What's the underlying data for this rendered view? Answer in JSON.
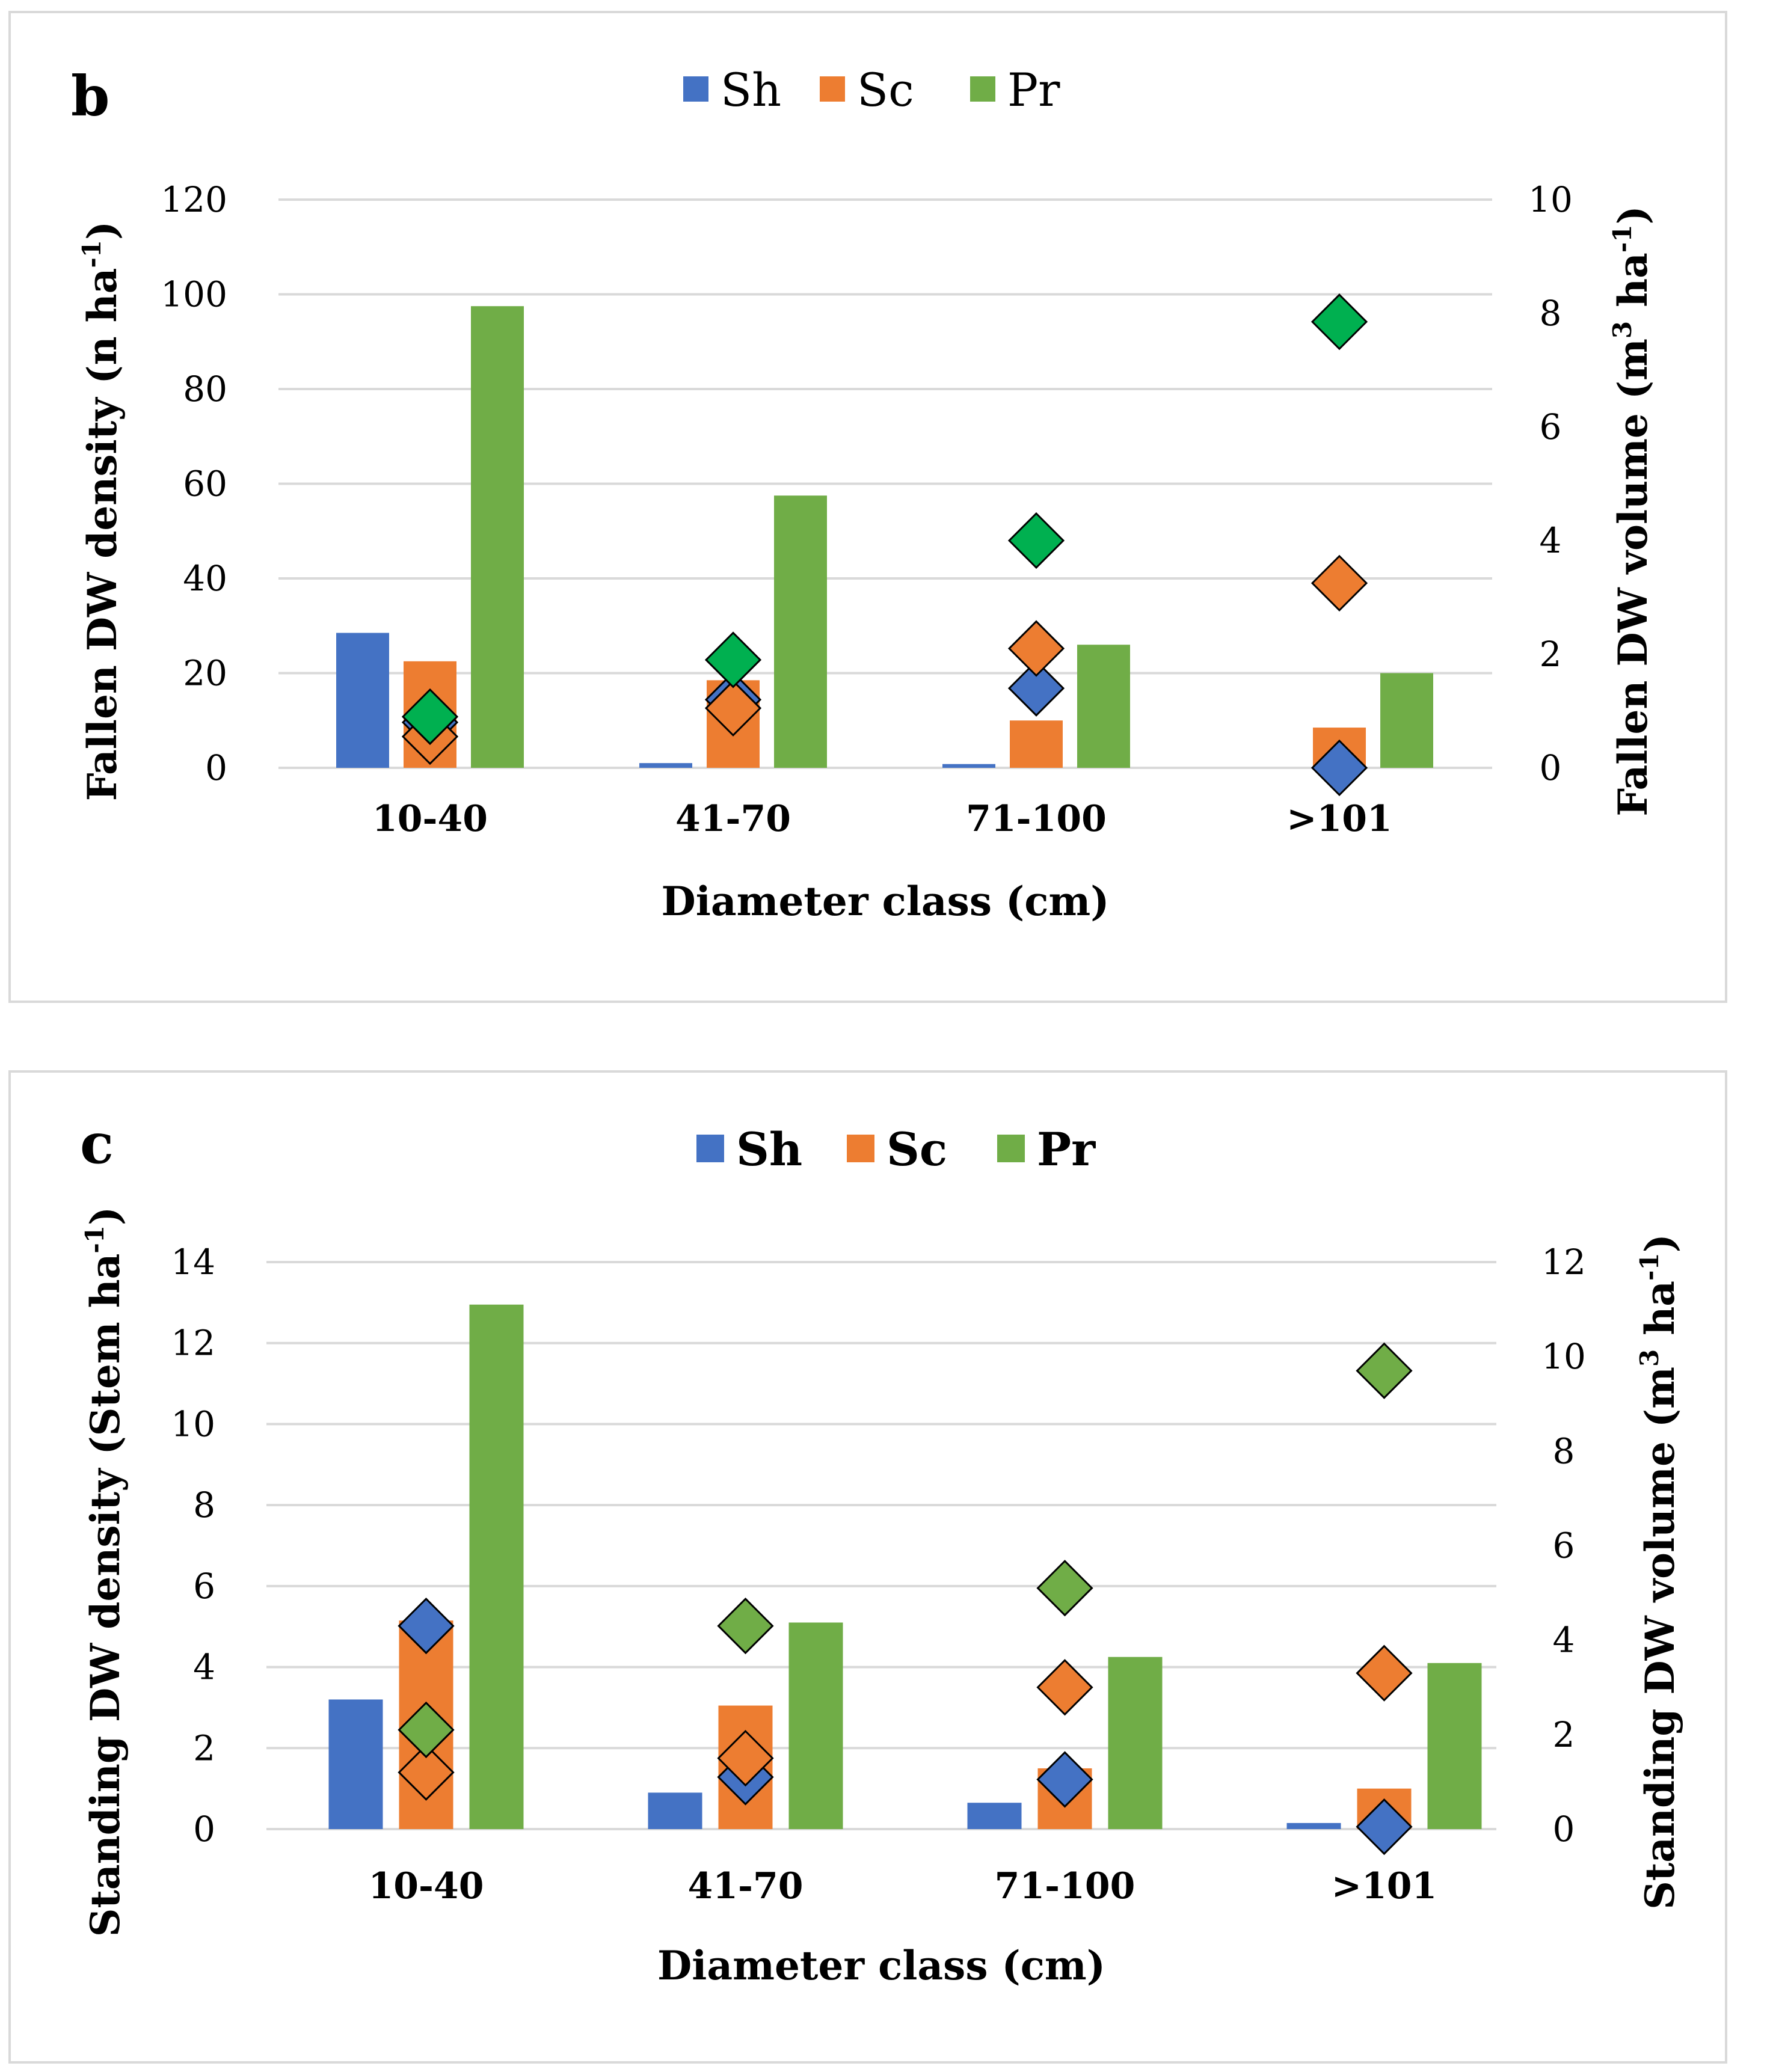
{
  "chart_data": [
    {
      "type": "bar",
      "panel_label": "b",
      "categories": [
        "10-40",
        "41-70",
        "71-100",
        ">101"
      ],
      "xlabel": "Diameter class (cm)",
      "ylabel": "Fallen DW density (n ha",
      "ylabel_sup": "-1",
      "ylabel_close": ")",
      "y2label": "Fallen DW volume (m",
      "y2label_sup1": "3",
      "y2label_mid": " ha",
      "y2label_sup2": "-1",
      "y2label_close": ")",
      "ylim": [
        0,
        120
      ],
      "yticks": [
        0,
        20,
        40,
        60,
        80,
        100,
        120
      ],
      "y2lim": [
        0,
        10
      ],
      "y2ticks": [
        0,
        2,
        4,
        6,
        8,
        10
      ],
      "grid": true,
      "legend_position": "top-center",
      "series": [
        {
          "name": "Sh",
          "color": "#4472c4",
          "values": [
            28.5,
            1.0,
            0.8,
            0
          ]
        },
        {
          "name": "Sc",
          "color": "#ed7d31",
          "values": [
            22.5,
            18.5,
            10.0,
            8.5
          ]
        },
        {
          "name": "Pr",
          "color": "#70ad47",
          "values": [
            97.5,
            57.5,
            26.0,
            20.0
          ]
        }
      ],
      "volume_series": [
        {
          "name": "Sh",
          "color": "#4472c4",
          "values": [
            0.8,
            1.2,
            1.4,
            0.0
          ]
        },
        {
          "name": "Sc",
          "color": "#ed7d31",
          "values": [
            0.55,
            1.05,
            2.1,
            3.25
          ]
        },
        {
          "name": "Pr",
          "color": "#00b050",
          "values": [
            0.9,
            1.9,
            4.0,
            7.85
          ]
        }
      ]
    },
    {
      "type": "bar",
      "panel_label": "c",
      "categories": [
        "10-40",
        "41-70",
        "71-100",
        ">101"
      ],
      "xlabel": "Diameter class (cm)",
      "ylabel": "Standing DW density (Stem ha",
      "ylabel_sup": "-1",
      "ylabel_close": ")",
      "y2label": "Standing DW volume (m",
      "y2label_sup1": "3",
      "y2label_mid": " ha",
      "y2label_sup2": "-1",
      "y2label_close": ")",
      "ylim": [
        0,
        14
      ],
      "yticks": [
        0,
        2,
        4,
        6,
        8,
        10,
        12,
        14
      ],
      "y2lim": [
        0,
        12
      ],
      "y2ticks": [
        0,
        2,
        4,
        6,
        8,
        10,
        12
      ],
      "grid": true,
      "legend_position": "top-center",
      "series": [
        {
          "name": "Sh",
          "color": "#4472c4",
          "values": [
            3.2,
            0.9,
            0.65,
            0.15
          ]
        },
        {
          "name": "Sc",
          "color": "#ed7d31",
          "values": [
            5.15,
            3.05,
            1.5,
            1.0
          ]
        },
        {
          "name": "Pr",
          "color": "#70ad47",
          "values": [
            12.95,
            5.1,
            4.25,
            4.1
          ]
        }
      ],
      "volume_series": [
        {
          "name": "Sh",
          "color": "#4472c4",
          "values": [
            4.3,
            1.1,
            1.05,
            0.05
          ]
        },
        {
          "name": "Sc",
          "color": "#ed7d31",
          "values": [
            1.2,
            1.5,
            3.0,
            3.3
          ]
        },
        {
          "name": "Pr",
          "color": "#70ad47",
          "values": [
            2.1,
            4.3,
            5.1,
            9.7
          ]
        }
      ]
    }
  ]
}
